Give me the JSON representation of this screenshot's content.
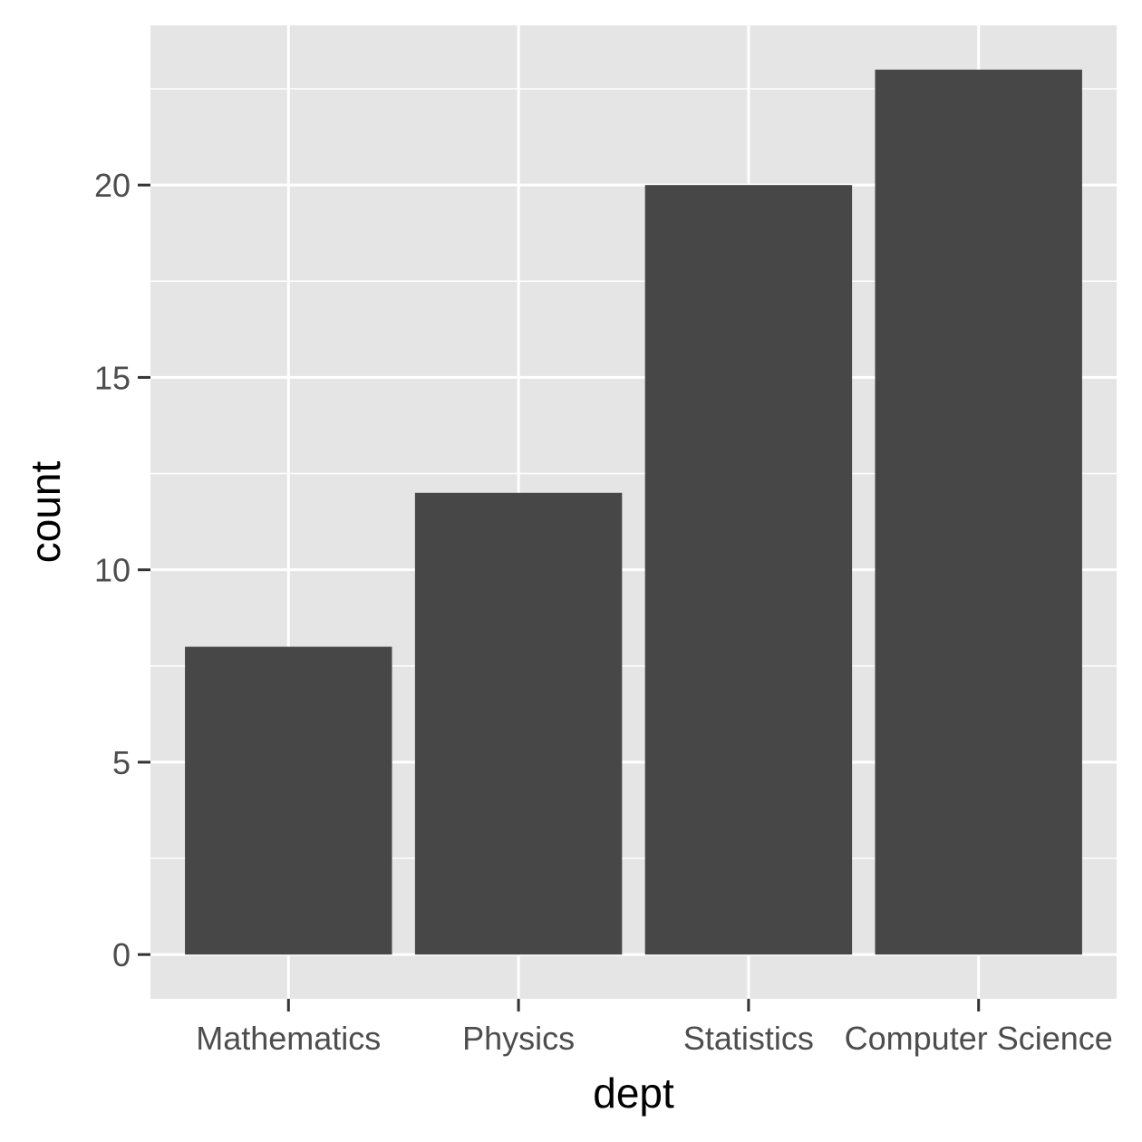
{
  "chart_data": {
    "type": "bar",
    "title": "",
    "xlabel": "dept",
    "ylabel": "count",
    "categories": [
      "Mathematics",
      "Physics",
      "Statistics",
      "Computer Science"
    ],
    "values": [
      8,
      12,
      20,
      23
    ],
    "ylim": [
      -1.15,
      24.15
    ],
    "yticks": [
      0,
      5,
      10,
      15,
      20
    ],
    "yticks_minor": [
      2.5,
      7.5,
      12.5,
      17.5,
      22.5
    ],
    "grid": true,
    "legend": "none",
    "colors": {
      "bar": "#474747",
      "panel": "#e5e5e5",
      "grid": "#ffffff",
      "tick": "#333333"
    }
  }
}
